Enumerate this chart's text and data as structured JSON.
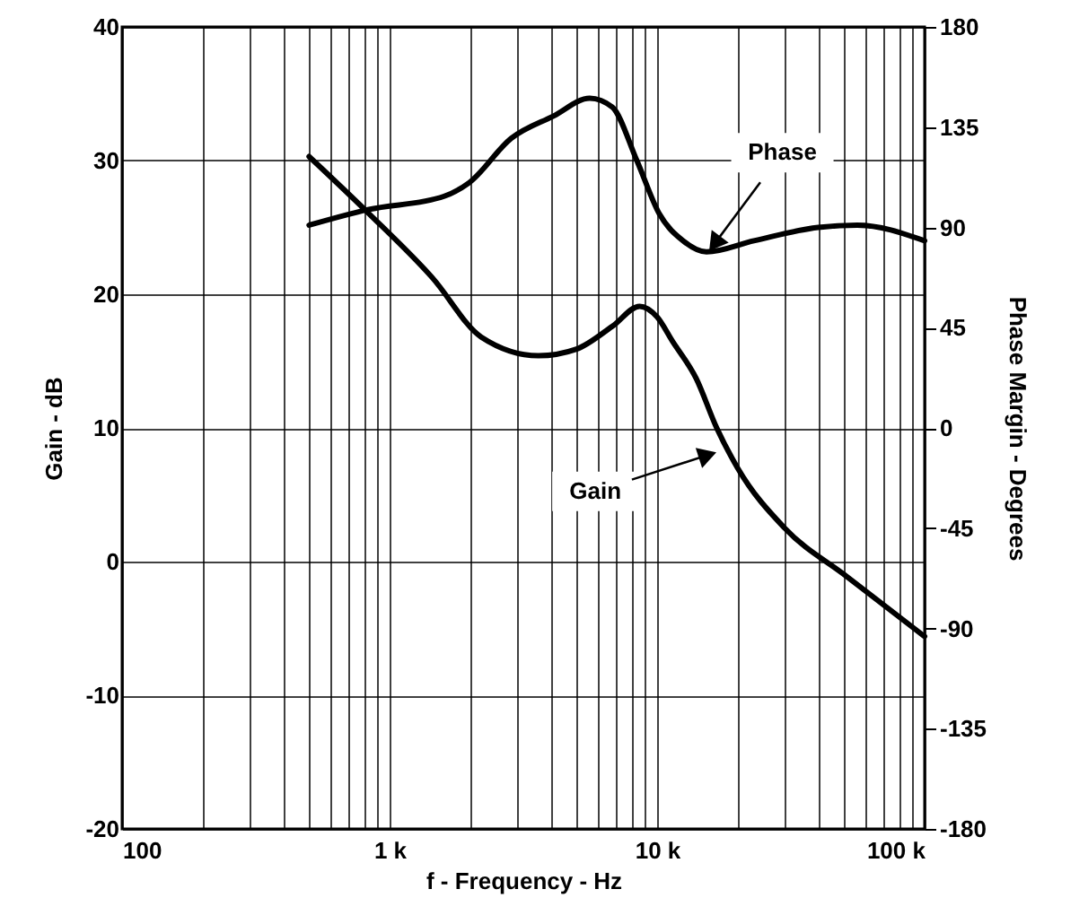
{
  "chart_data": {
    "type": "line",
    "xlabel": "f - Frequency - Hz",
    "ylabel": "Gain - dB",
    "y2label": "Phase Margin - Degrees",
    "log": "x",
    "grid": true,
    "line_style": "solid",
    "xlim": [
      100,
      100000
    ],
    "xticks": [
      100,
      {
        "value": 200,
        "label": null
      },
      {
        "value": 300,
        "label": null
      },
      {
        "value": 400,
        "label": null
      },
      {
        "value": 500,
        "label": null
      },
      {
        "value": 600,
        "label": null
      },
      {
        "value": 700,
        "label": null
      },
      {
        "value": 800,
        "label": null
      },
      {
        "value": 900,
        "label": null
      },
      {
        "value": 1000,
        "label": "1 k"
      },
      {
        "value": 2000,
        "label": null
      },
      {
        "value": 3000,
        "label": null
      },
      {
        "value": 4000,
        "label": null
      },
      {
        "value": 5000,
        "label": null
      },
      {
        "value": 6000,
        "label": null
      },
      {
        "value": 7000,
        "label": null
      },
      {
        "value": 8000,
        "label": null
      },
      {
        "value": 9000,
        "label": null
      },
      {
        "value": 10000,
        "label": "10 k"
      },
      {
        "value": 20000,
        "label": null
      },
      {
        "value": 30000,
        "label": null
      },
      {
        "value": 40000,
        "label": null
      },
      {
        "value": 50000,
        "label": null
      },
      {
        "value": 60000,
        "label": null
      },
      {
        "value": 70000,
        "label": null
      },
      {
        "value": 80000,
        "label": null
      },
      {
        "value": 90000,
        "label": null
      },
      {
        "value": 100000,
        "label": "100 k"
      }
    ],
    "ylim": [
      -20,
      40
    ],
    "yticks": [
      -20,
      -10,
      0,
      10,
      20,
      30,
      40
    ],
    "y2lim": [
      -180,
      180
    ],
    "y2ticks": [
      -180,
      -135,
      -90,
      -45,
      0,
      45,
      90,
      135,
      180
    ],
    "series": [
      {
        "color": "#000000",
        "x": [
          500,
          830,
          1450,
          2200,
          3600,
          5000,
          6800,
          8600,
          10000,
          11400,
          14000,
          16700,
          20000,
          30000,
          51000,
          100000
        ],
        "values": [
          30.3,
          26.1,
          21.2,
          16.8,
          15.4,
          15.9,
          17.6,
          19.1,
          18.3,
          16.5,
          13.7,
          10,
          7,
          2.5,
          -1.1,
          -5.6
        ]
      },
      {
        "color": "#000000",
        "axis": "y2",
        "x": [
          500,
          830,
          1600,
          1980,
          2850,
          4100,
          5600,
          6800,
          8400,
          10200,
          12500,
          15300,
          23000,
          40000,
          56000,
          100000
        ],
        "values": [
          91,
          98,
          104,
          110,
          130,
          140,
          148,
          144,
          120,
          96,
          84,
          79,
          84,
          90,
          91,
          84
        ]
      }
    ],
    "annotations": [
      {
        "text": "Phase",
        "x": 15600,
        "y": 23.2
      },
      {
        "text": "Gain",
        "x": 16800,
        "y": 8.2
      }
    ]
  }
}
